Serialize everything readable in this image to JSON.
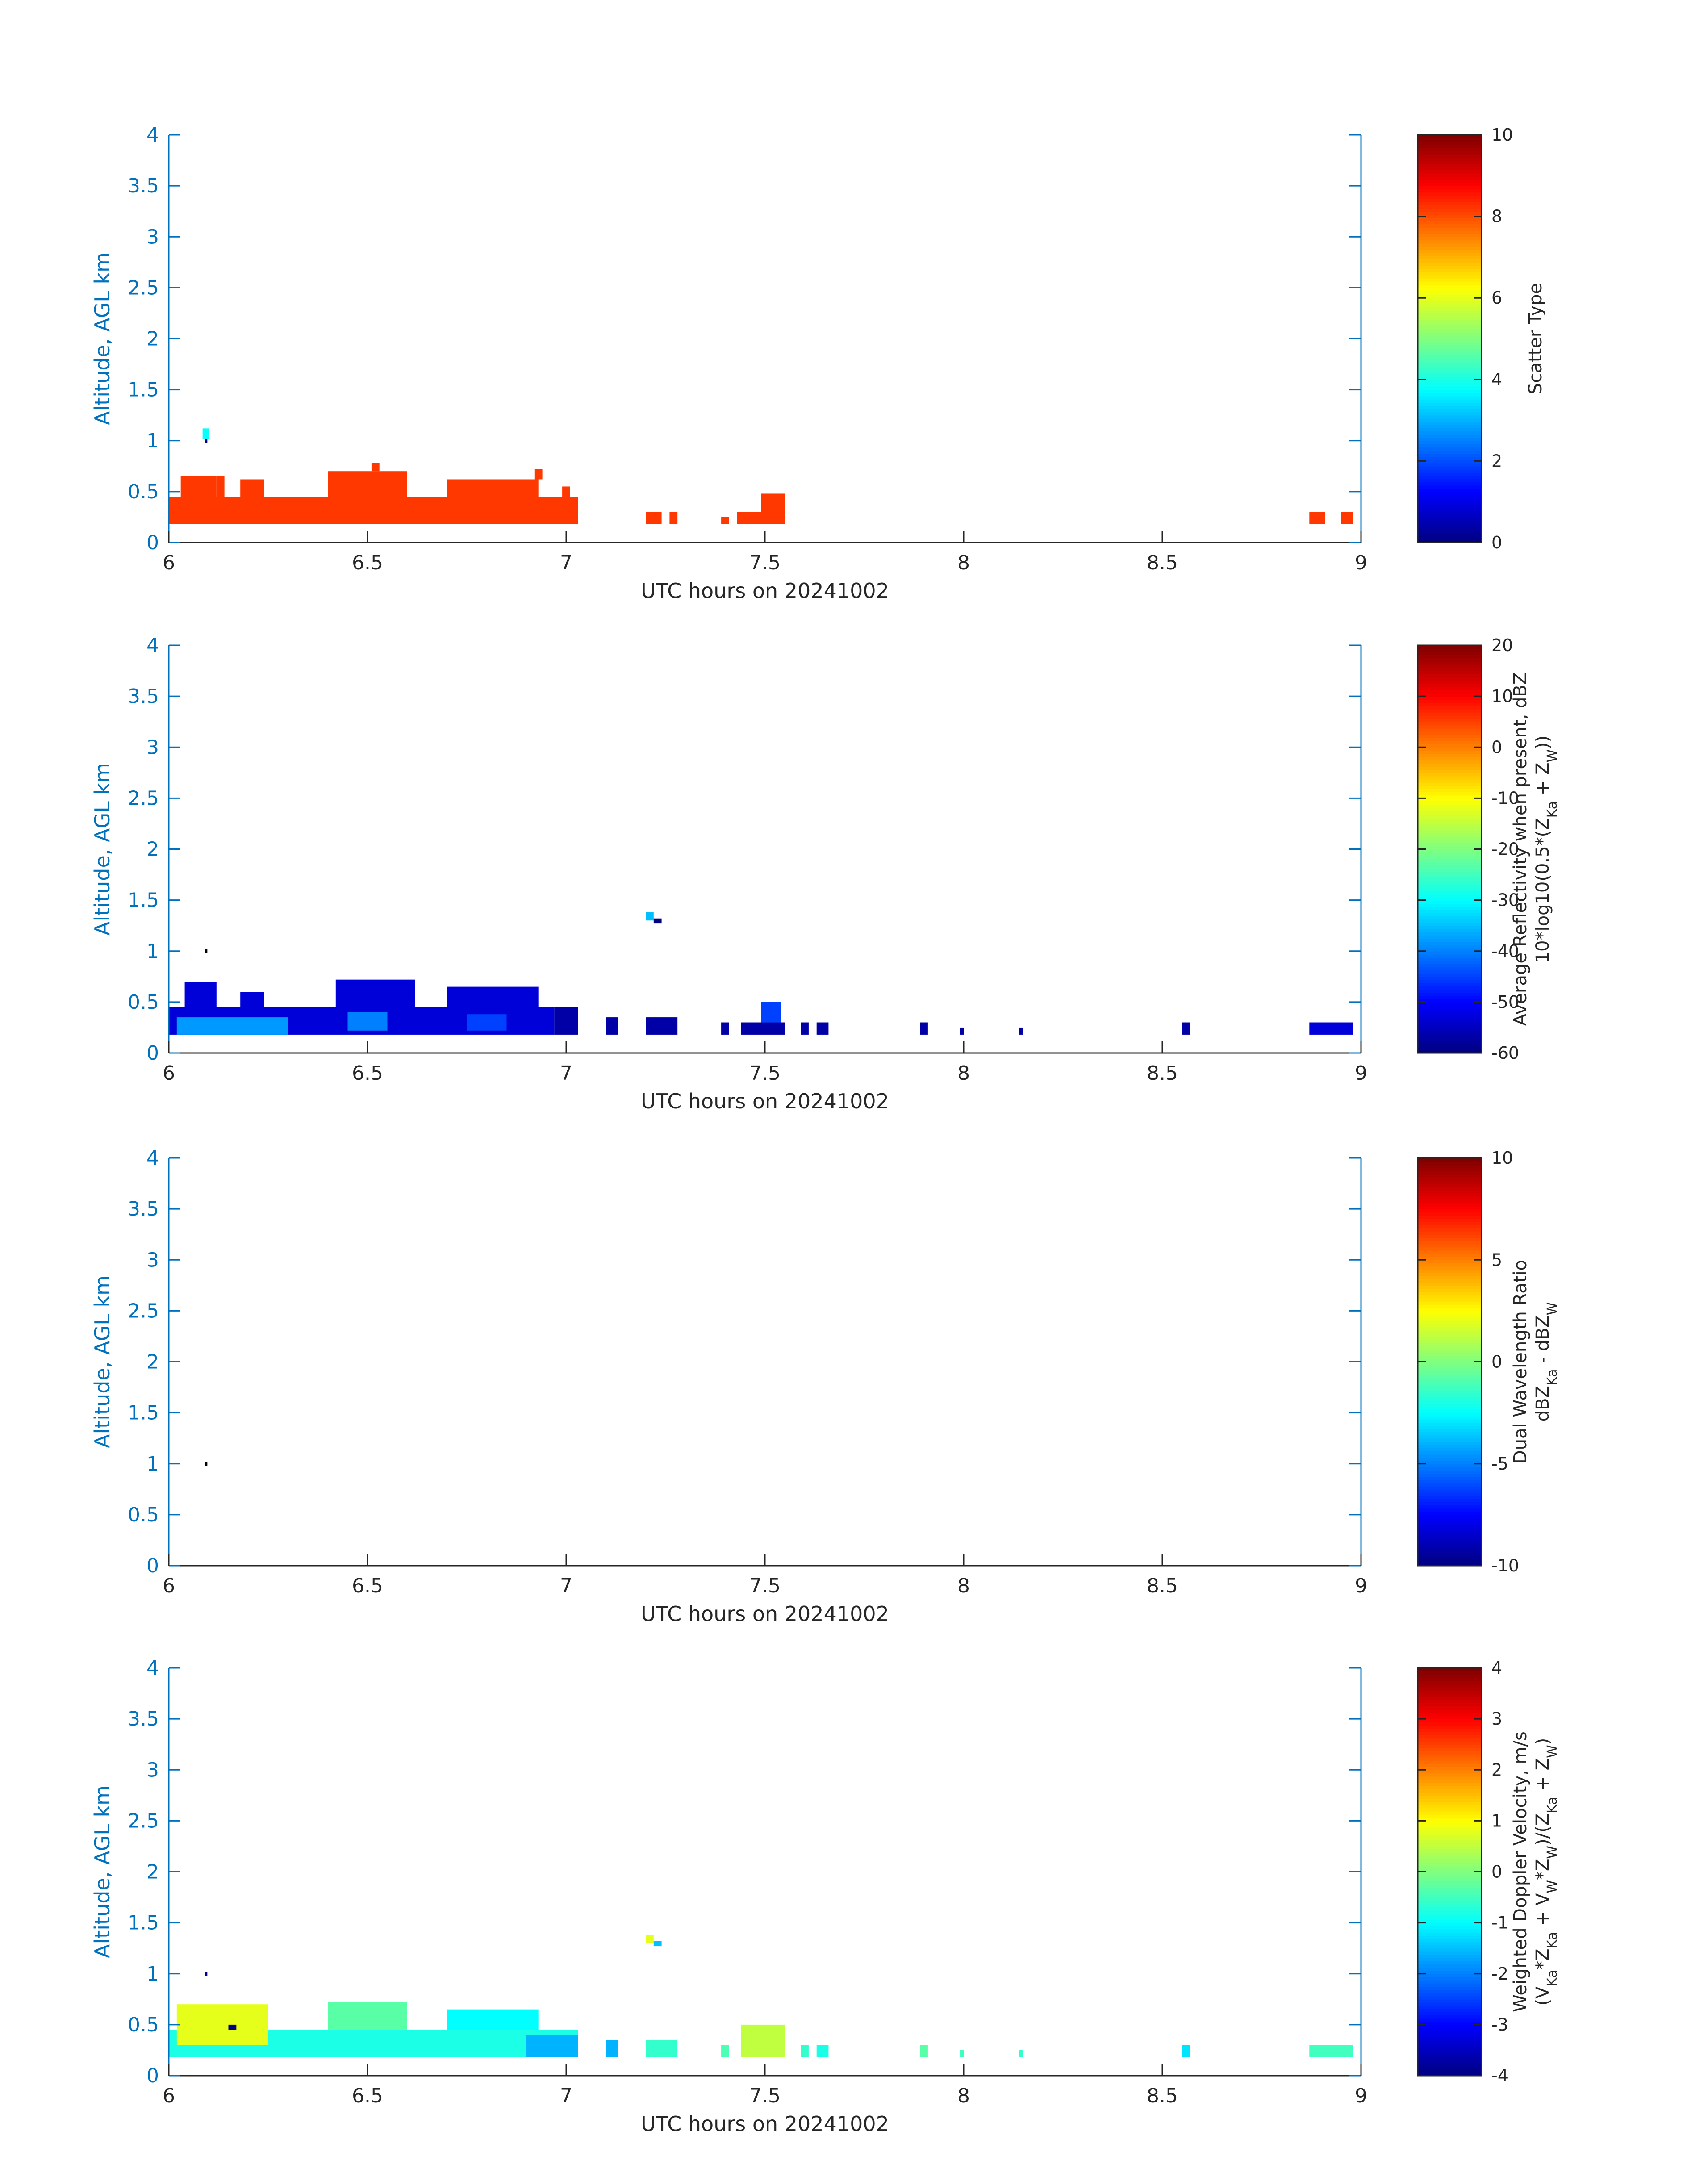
{
  "chart_data": [
    {
      "type": "heatmap",
      "xlabel": "UTC hours on 20241002",
      "ylabel": "Altitude, AGL km",
      "xlim": [
        6,
        9
      ],
      "ylim": [
        0,
        4
      ],
      "xticks": [
        "6",
        "6.5",
        "7",
        "7.5",
        "8",
        "8.5",
        "9"
      ],
      "yticks": [
        "0",
        "0.5",
        "1",
        "1.5",
        "2",
        "2.5",
        "3",
        "3.5",
        "4"
      ],
      "colorbar": {
        "label": [
          "Scatter Type"
        ],
        "clim": [
          0,
          10
        ],
        "ticks": [
          "0",
          "2",
          "4",
          "6",
          "8",
          "10"
        ]
      },
      "colormap": "jet",
      "cells": [
        {
          "x": 6.0,
          "x2": 7.03,
          "y": 0.18,
          "y2": 0.45,
          "v": 8.2
        },
        {
          "x": 6.03,
          "x2": 6.12,
          "y": 0.45,
          "y2": 0.65,
          "v": 8.2
        },
        {
          "x": 6.12,
          "x2": 6.14,
          "y": 0.45,
          "y2": 0.65,
          "v": 8.2
        },
        {
          "x": 6.18,
          "x2": 6.24,
          "y": 0.45,
          "y2": 0.62,
          "v": 8.2
        },
        {
          "x": 6.4,
          "x2": 6.6,
          "y": 0.45,
          "y2": 0.7,
          "v": 8.2
        },
        {
          "x": 6.51,
          "x2": 6.53,
          "y": 0.7,
          "y2": 0.78,
          "v": 8.2
        },
        {
          "x": 6.7,
          "x2": 6.93,
          "y": 0.45,
          "y2": 0.62,
          "v": 8.2
        },
        {
          "x": 6.92,
          "x2": 6.94,
          "y": 0.62,
          "y2": 0.72,
          "v": 8.2
        },
        {
          "x": 6.99,
          "x2": 7.01,
          "y": 0.45,
          "y2": 0.55,
          "v": 8.2
        },
        {
          "x": 7.2,
          "x2": 7.24,
          "y": 0.18,
          "y2": 0.3,
          "v": 8.2
        },
        {
          "x": 7.26,
          "x2": 7.28,
          "y": 0.18,
          "y2": 0.3,
          "v": 8.2
        },
        {
          "x": 7.39,
          "x2": 7.41,
          "y": 0.18,
          "y2": 0.25,
          "v": 8.2
        },
        {
          "x": 7.43,
          "x2": 7.55,
          "y": 0.18,
          "y2": 0.3,
          "v": 8.2
        },
        {
          "x": 7.49,
          "x2": 7.55,
          "y": 0.3,
          "y2": 0.48,
          "v": 8.2
        },
        {
          "x": 8.87,
          "x2": 8.91,
          "y": 0.18,
          "y2": 0.3,
          "v": 8.2
        },
        {
          "x": 8.95,
          "x2": 8.98,
          "y": 0.18,
          "y2": 0.3,
          "v": 8.2
        },
        {
          "x": 6.085,
          "x2": 6.1,
          "y": 1.02,
          "y2": 1.12,
          "v": 3.8
        },
        {
          "x": 6.09,
          "x2": 6.097,
          "y": 0.98,
          "y2": 1.02,
          "v": 0
        }
      ]
    },
    {
      "type": "heatmap",
      "xlabel": "UTC hours on 20241002",
      "ylabel": "Altitude, AGL km",
      "xlim": [
        6,
        9
      ],
      "ylim": [
        0,
        4
      ],
      "xticks": [
        "6",
        "6.5",
        "7",
        "7.5",
        "8",
        "8.5",
        "9"
      ],
      "yticks": [
        "0",
        "0.5",
        "1",
        "1.5",
        "2",
        "2.5",
        "3",
        "3.5",
        "4"
      ],
      "colorbar": {
        "label": [
          "Average Reflectivity when present, dBZ",
          "10*log10(0.5*(Z_Ka + Z_W))"
        ],
        "clim": [
          -60,
          20
        ],
        "ticks": [
          "-60",
          "-50",
          "-40",
          "-30",
          "-20",
          "-10",
          "0",
          "10",
          "20"
        ]
      },
      "colormap": "jet",
      "cells": [
        {
          "x": 6.0,
          "x2": 6.97,
          "y": 0.18,
          "y2": 0.45,
          "v": -53
        },
        {
          "x": 6.02,
          "x2": 6.3,
          "y": 0.18,
          "y2": 0.35,
          "v": -38
        },
        {
          "x": 6.04,
          "x2": 6.12,
          "y": 0.45,
          "y2": 0.7,
          "v": -53
        },
        {
          "x": 6.18,
          "x2": 6.24,
          "y": 0.45,
          "y2": 0.6,
          "v": -53
        },
        {
          "x": 6.42,
          "x2": 6.62,
          "y": 0.45,
          "y2": 0.72,
          "v": -53
        },
        {
          "x": 6.45,
          "x2": 6.55,
          "y": 0.22,
          "y2": 0.4,
          "v": -40
        },
        {
          "x": 6.7,
          "x2": 6.93,
          "y": 0.45,
          "y2": 0.65,
          "v": -53
        },
        {
          "x": 6.75,
          "x2": 6.85,
          "y": 0.22,
          "y2": 0.38,
          "v": -45
        },
        {
          "x": 6.97,
          "x2": 7.03,
          "y": 0.18,
          "y2": 0.45,
          "v": -57
        },
        {
          "x": 7.1,
          "x2": 7.13,
          "y": 0.18,
          "y2": 0.35,
          "v": -57
        },
        {
          "x": 7.2,
          "x2": 7.28,
          "y": 0.18,
          "y2": 0.35,
          "v": -57
        },
        {
          "x": 7.39,
          "x2": 7.41,
          "y": 0.18,
          "y2": 0.3,
          "v": -57
        },
        {
          "x": 7.44,
          "x2": 7.55,
          "y": 0.18,
          "y2": 0.3,
          "v": -57
        },
        {
          "x": 7.49,
          "x2": 7.54,
          "y": 0.3,
          "y2": 0.5,
          "v": -45
        },
        {
          "x": 7.59,
          "x2": 7.61,
          "y": 0.18,
          "y2": 0.3,
          "v": -57
        },
        {
          "x": 7.63,
          "x2": 7.66,
          "y": 0.18,
          "y2": 0.3,
          "v": -57
        },
        {
          "x": 7.89,
          "x2": 7.91,
          "y": 0.18,
          "y2": 0.3,
          "v": -57
        },
        {
          "x": 7.99,
          "x2": 8.0,
          "y": 0.18,
          "y2": 0.25,
          "v": -57
        },
        {
          "x": 8.14,
          "x2": 8.15,
          "y": 0.18,
          "y2": 0.25,
          "v": -57
        },
        {
          "x": 8.55,
          "x2": 8.57,
          "y": 0.18,
          "y2": 0.3,
          "v": -57
        },
        {
          "x": 8.87,
          "x2": 8.98,
          "y": 0.18,
          "y2": 0.3,
          "v": -53
        },
        {
          "x": 7.2,
          "x2": 7.22,
          "y": 1.3,
          "y2": 1.38,
          "v": -35
        },
        {
          "x": 7.22,
          "x2": 7.24,
          "y": 1.27,
          "y2": 1.32,
          "v": -60
        },
        {
          "x": 6.09,
          "x2": 6.097,
          "y": 0.98,
          "y2": 1.02,
          "v": -70
        }
      ]
    },
    {
      "type": "heatmap",
      "xlabel": "UTC hours on 20241002",
      "ylabel": "Altitude, AGL km",
      "xlim": [
        6,
        9
      ],
      "ylim": [
        0,
        4
      ],
      "xticks": [
        "6",
        "6.5",
        "7",
        "7.5",
        "8",
        "8.5",
        "9"
      ],
      "yticks": [
        "0",
        "0.5",
        "1",
        "1.5",
        "2",
        "2.5",
        "3",
        "3.5",
        "4"
      ],
      "colorbar": {
        "label": [
          "Dual Wavelength Ratio",
          "dBZ_Ka - dBZ_W"
        ],
        "clim": [
          -10,
          10
        ],
        "ticks": [
          "-10",
          "-5",
          "0",
          "5",
          "10"
        ]
      },
      "colormap": "jet",
      "cells": [
        {
          "x": 6.09,
          "x2": 6.097,
          "y": 0.98,
          "y2": 1.02,
          "v": -20
        }
      ]
    },
    {
      "type": "heatmap",
      "xlabel": "UTC hours on 20241002",
      "ylabel": "Altitude, AGL km",
      "xlim": [
        6,
        9
      ],
      "ylim": [
        0,
        4
      ],
      "xticks": [
        "6",
        "6.5",
        "7",
        "7.5",
        "8",
        "8.5",
        "9"
      ],
      "yticks": [
        "0",
        "0.5",
        "1",
        "1.5",
        "2",
        "2.5",
        "3",
        "3.5",
        "4"
      ],
      "colorbar": {
        "label": [
          "Weighted Doppler Velocity, m/s",
          "(V_Ka*Z_Ka + V_W*Z_W)/(Z_Ka + Z_W)"
        ],
        "clim": [
          -4,
          4
        ],
        "ticks": [
          "-4",
          "-3",
          "-2",
          "-1",
          "0",
          "1",
          "2",
          "3",
          "4"
        ]
      },
      "colormap": "jet",
      "cells": [
        {
          "x": 6.0,
          "x2": 7.03,
          "y": 0.18,
          "y2": 0.45,
          "v": -0.8
        },
        {
          "x": 6.02,
          "x2": 6.25,
          "y": 0.3,
          "y2": 0.7,
          "v": 0.8
        },
        {
          "x": 6.4,
          "x2": 6.6,
          "y": 0.45,
          "y2": 0.72,
          "v": -0.3
        },
        {
          "x": 6.7,
          "x2": 6.93,
          "y": 0.45,
          "y2": 0.65,
          "v": -1.0
        },
        {
          "x": 6.9,
          "x2": 7.03,
          "y": 0.18,
          "y2": 0.4,
          "v": -1.6
        },
        {
          "x": 6.15,
          "x2": 6.17,
          "y": 0.45,
          "y2": 0.5,
          "v": -4.5
        },
        {
          "x": 7.1,
          "x2": 7.13,
          "y": 0.18,
          "y2": 0.35,
          "v": -1.6
        },
        {
          "x": 7.2,
          "x2": 7.28,
          "y": 0.18,
          "y2": 0.35,
          "v": -0.6
        },
        {
          "x": 7.39,
          "x2": 7.41,
          "y": 0.18,
          "y2": 0.3,
          "v": -0.4
        },
        {
          "x": 7.44,
          "x2": 7.55,
          "y": 0.18,
          "y2": 0.5,
          "v": 0.5
        },
        {
          "x": 7.59,
          "x2": 7.61,
          "y": 0.18,
          "y2": 0.3,
          "v": -0.6
        },
        {
          "x": 7.63,
          "x2": 7.66,
          "y": 0.18,
          "y2": 0.3,
          "v": -0.8
        },
        {
          "x": 7.89,
          "x2": 7.91,
          "y": 0.18,
          "y2": 0.3,
          "v": -0.3
        },
        {
          "x": 7.99,
          "x2": 8.0,
          "y": 0.18,
          "y2": 0.25,
          "v": -0.5
        },
        {
          "x": 8.14,
          "x2": 8.15,
          "y": 0.18,
          "y2": 0.25,
          "v": -0.6
        },
        {
          "x": 8.55,
          "x2": 8.57,
          "y": 0.18,
          "y2": 0.3,
          "v": -1.2
        },
        {
          "x": 8.87,
          "x2": 8.98,
          "y": 0.18,
          "y2": 0.3,
          "v": -0.5
        },
        {
          "x": 7.2,
          "x2": 7.22,
          "y": 1.3,
          "y2": 1.38,
          "v": 0.8
        },
        {
          "x": 7.22,
          "x2": 7.24,
          "y": 1.27,
          "y2": 1.32,
          "v": -1.5
        },
        {
          "x": 6.09,
          "x2": 6.097,
          "y": 0.98,
          "y2": 1.02,
          "v": -5
        }
      ]
    }
  ]
}
